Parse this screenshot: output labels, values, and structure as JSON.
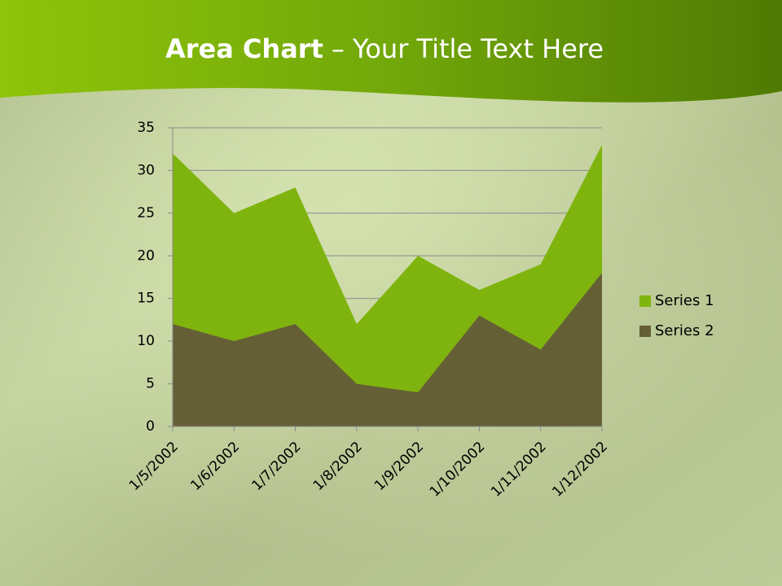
{
  "chart_data": {
    "type": "area",
    "title": [
      "Area Chart",
      "– Your Title Text Here"
    ],
    "categories": [
      "1/5/2002",
      "1/6/2002",
      "1/7/2002",
      "1/8/2002",
      "1/9/2002",
      "1/10/2002",
      "1/11/2002",
      "1/12/2002"
    ],
    "series": [
      {
        "name": "Series 1",
        "color": "#7fb40e",
        "values": [
          32,
          25,
          28,
          12,
          20,
          16,
          19,
          33
        ]
      },
      {
        "name": "Series 2",
        "color": "#655f36",
        "values": [
          12,
          10,
          12,
          5,
          4,
          13,
          9,
          18
        ]
      }
    ],
    "ylim": [
      0,
      35
    ],
    "yticks": [
      0,
      5,
      10,
      15,
      20,
      25,
      30,
      35
    ],
    "grid": true,
    "legend": "right"
  }
}
